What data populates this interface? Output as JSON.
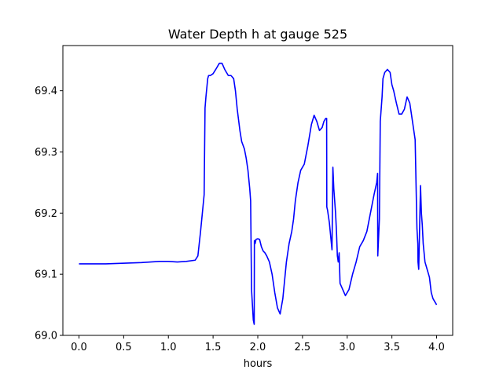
{
  "chart_data": {
    "type": "line",
    "title": "Water Depth h at gauge 525",
    "xlabel": "hours",
    "ylabel": "",
    "xlim": [
      -0.18,
      4.18
    ],
    "ylim": [
      69.0,
      69.474
    ],
    "xticks": [
      0.0,
      0.5,
      1.0,
      1.5,
      2.0,
      2.5,
      3.0,
      3.5,
      4.0
    ],
    "xtick_labels": [
      "0.0",
      "0.5",
      "1.0",
      "1.5",
      "2.0",
      "2.5",
      "3.0",
      "3.5",
      "4.0"
    ],
    "yticks": [
      69.0,
      69.1,
      69.2,
      69.3,
      69.4
    ],
    "ytick_labels": [
      "69.0",
      "69.1",
      "69.2",
      "69.3",
      "69.4"
    ],
    "grid": false,
    "series": [
      {
        "color": "#0000ff",
        "x": [
          0.0,
          0.3,
          0.7,
          0.9,
          1.0,
          1.1,
          1.2,
          1.3,
          1.33,
          1.36,
          1.38,
          1.4,
          1.41,
          1.42,
          1.43,
          1.44,
          1.45,
          1.47,
          1.5,
          1.53,
          1.57,
          1.6,
          1.63,
          1.67,
          1.7,
          1.73,
          1.75,
          1.77,
          1.8,
          1.82,
          1.85,
          1.87,
          1.89,
          1.9,
          1.91,
          1.92,
          1.93,
          1.94,
          1.95,
          1.96,
          1.962,
          1.97,
          1.98,
          2.0,
          2.02,
          2.04,
          2.06,
          2.08,
          2.1,
          2.13,
          2.16,
          2.19,
          2.22,
          2.25,
          2.28,
          2.3,
          2.32,
          2.35,
          2.38,
          2.4,
          2.42,
          2.45,
          2.48,
          2.52,
          2.56,
          2.6,
          2.63,
          2.66,
          2.69,
          2.72,
          2.74,
          2.76,
          2.77,
          2.772,
          2.78,
          2.8,
          2.82,
          2.83,
          2.84,
          2.85,
          2.87,
          2.88,
          2.89,
          2.9,
          2.91,
          2.92,
          2.95,
          2.98,
          3.02,
          3.06,
          3.1,
          3.14,
          3.18,
          3.22,
          3.26,
          3.3,
          3.33,
          3.34,
          3.342,
          3.36,
          3.37,
          3.38,
          3.39,
          3.4,
          3.42,
          3.45,
          3.48,
          3.5,
          3.52,
          3.55,
          3.58,
          3.61,
          3.64,
          3.67,
          3.7,
          3.73,
          3.76,
          3.78,
          3.79,
          3.792,
          3.8,
          3.82,
          3.83,
          3.84,
          3.85,
          3.87,
          3.9,
          3.92,
          3.94,
          3.96,
          3.98,
          4.0
        ],
        "y": [
          69.117,
          69.117,
          69.119,
          69.121,
          69.121,
          69.12,
          69.121,
          69.123,
          69.13,
          69.17,
          69.2,
          69.23,
          69.372,
          69.39,
          69.405,
          69.42,
          69.425,
          69.425,
          69.428,
          69.435,
          69.445,
          69.445,
          69.435,
          69.425,
          69.425,
          69.42,
          69.4,
          69.37,
          69.335,
          69.317,
          69.305,
          69.29,
          69.27,
          69.255,
          69.24,
          69.22,
          69.075,
          69.05,
          69.025,
          69.018,
          69.155,
          69.15,
          69.157,
          69.158,
          69.157,
          69.145,
          69.138,
          69.135,
          69.13,
          69.12,
          69.1,
          69.07,
          69.045,
          69.035,
          69.06,
          69.09,
          69.12,
          69.15,
          69.17,
          69.19,
          69.22,
          69.25,
          69.27,
          69.28,
          69.31,
          69.345,
          69.36,
          69.35,
          69.335,
          69.34,
          69.35,
          69.355,
          69.355,
          69.21,
          69.205,
          69.185,
          69.155,
          69.14,
          69.275,
          69.24,
          69.2,
          69.17,
          69.13,
          69.12,
          69.135,
          69.085,
          69.075,
          69.065,
          69.075,
          69.1,
          69.12,
          69.145,
          69.155,
          69.17,
          69.2,
          69.23,
          69.25,
          69.265,
          69.13,
          69.19,
          69.35,
          69.37,
          69.39,
          69.42,
          69.43,
          69.435,
          69.43,
          69.41,
          69.4,
          69.38,
          69.362,
          69.362,
          69.37,
          69.39,
          69.38,
          69.35,
          69.32,
          69.175,
          69.15,
          69.12,
          69.108,
          69.245,
          69.2,
          69.18,
          69.15,
          69.12,
          69.105,
          69.095,
          69.07,
          69.06,
          69.055,
          69.05
        ]
      }
    ]
  }
}
